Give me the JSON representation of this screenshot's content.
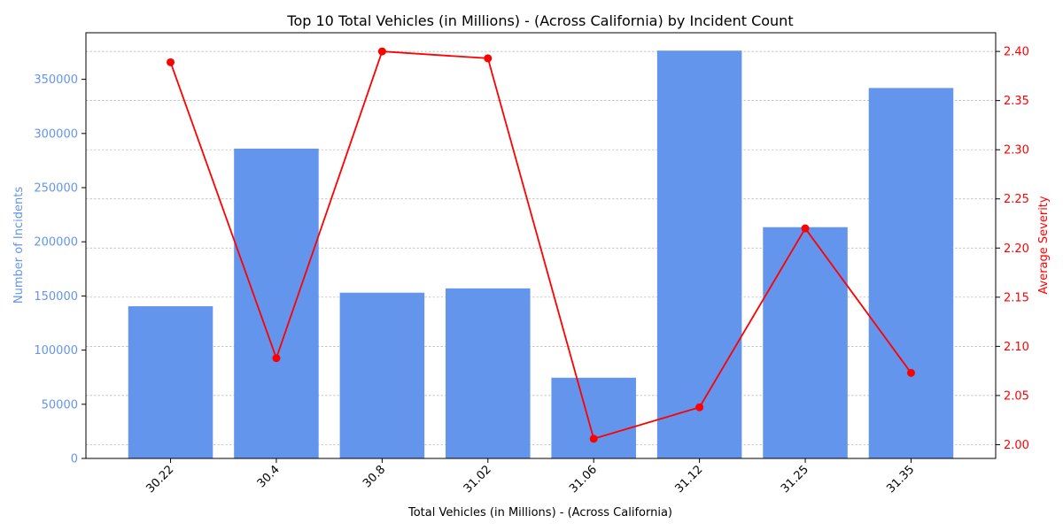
{
  "colors": {
    "bar": "#6495ED",
    "line": "#FF0000",
    "axis": "#000000",
    "grid": "#b0b0b0",
    "left_axis_text": "#6495ED",
    "right_axis_text": "#FF0000"
  },
  "chart_data": {
    "type": "bar",
    "title": "Top 10 Total Vehicles (in Millions) -  (Across California) by Incident Count",
    "xlabel": "Total Vehicles (in Millions) -  (Across California)",
    "ylabel": "Number of Incidents",
    "y2label": "Average Severity",
    "categories": [
      "30.22",
      "30.4",
      "30.8",
      "31.02",
      "31.06",
      "31.12",
      "31.25",
      "31.35"
    ],
    "series": [
      {
        "type": "bar",
        "axis": "left",
        "values": [
          140500,
          286000,
          153000,
          157000,
          74500,
          376500,
          213500,
          342000
        ]
      },
      {
        "type": "line",
        "axis": "right",
        "values": [
          2.389,
          2.088,
          2.4,
          2.393,
          2.006,
          2.038,
          2.22,
          2.073
        ]
      }
    ],
    "ylim": [
      0,
      393000
    ],
    "y2lim": [
      1.986,
      2.419
    ],
    "yticks": [
      0,
      50000,
      100000,
      150000,
      200000,
      250000,
      300000,
      350000
    ],
    "y2ticks": [
      2.0,
      2.05,
      2.1,
      2.15,
      2.2,
      2.25,
      2.3,
      2.35,
      2.4
    ],
    "y2tick_labels": [
      "2.00",
      "2.05",
      "2.10",
      "2.15",
      "2.20",
      "2.25",
      "2.30",
      "2.35",
      "2.40"
    ],
    "grid": "horizontal dashed (right axis)"
  }
}
